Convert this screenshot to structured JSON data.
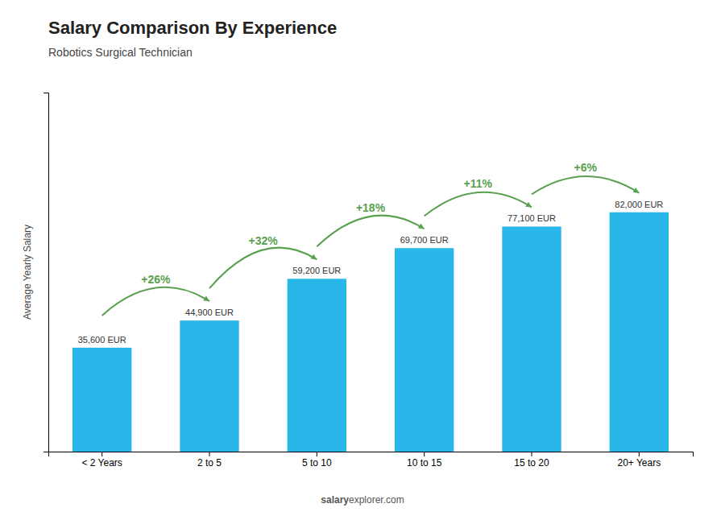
{
  "chart_data": {
    "type": "bar",
    "title": "Salary Comparison By Experience",
    "subtitle": "Robotics Surgical Technician",
    "categories": [
      "< 2 Years",
      "2 to 5",
      "5 to 10",
      "10 to 15",
      "15 to 20",
      "20+ Years"
    ],
    "values": [
      35600,
      44900,
      59200,
      69700,
      77100,
      82000
    ],
    "value_labels": [
      "35,600 EUR",
      "44,900 EUR",
      "59,200 EUR",
      "69,700 EUR",
      "77,100 EUR",
      "82,000 EUR"
    ],
    "data_labels": true,
    "color": "#29B6E8",
    "ylabel": "Average Yearly Salary",
    "ylim": [
      0,
      123000
    ],
    "yticks": [],
    "tick_labels": "x",
    "grid": false,
    "annotations": [
      "+26%",
      "+32%",
      "+18%",
      "+11%",
      "+6%"
    ],
    "watermark": [
      "salary",
      "explorer.com"
    ]
  }
}
